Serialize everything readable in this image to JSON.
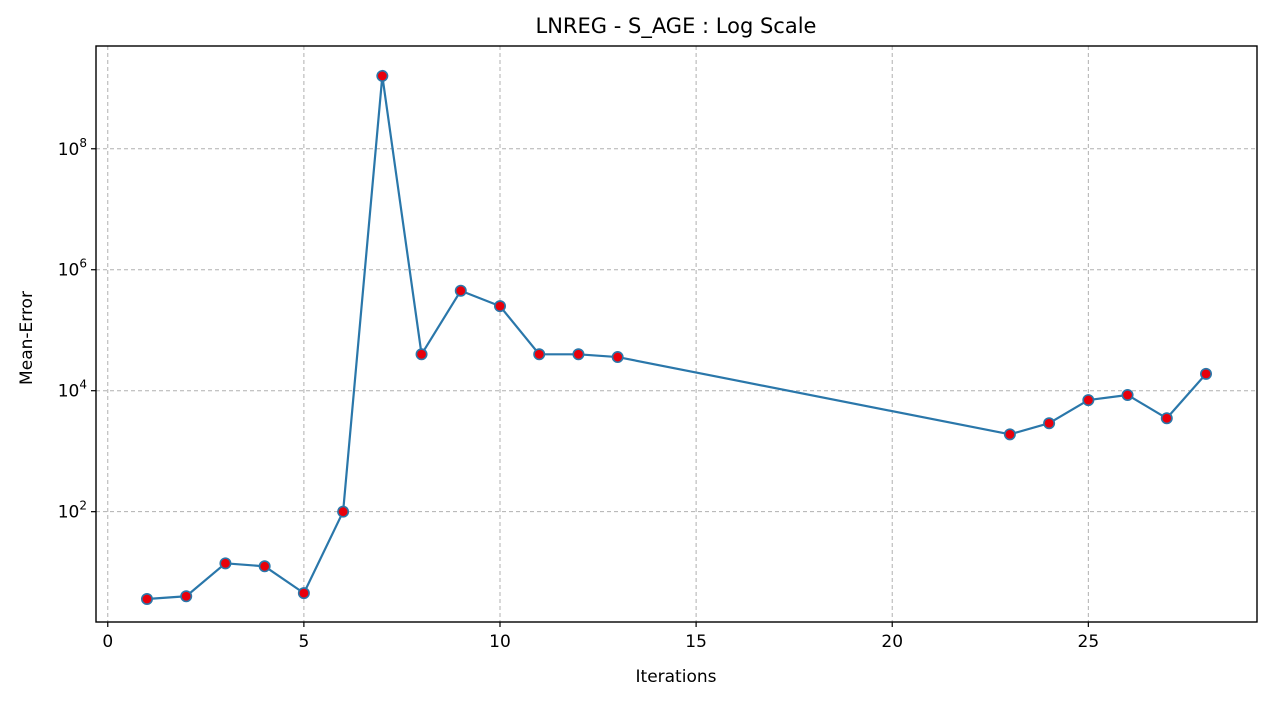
{
  "chart_data": {
    "type": "line",
    "title": "LNREG - S_AGE : Log Scale",
    "xlabel": "Iterations",
    "ylabel": "Mean-Error",
    "yscale": "log",
    "grid": true,
    "grid_style": "dashed",
    "xlim": [
      -0.3,
      29.3
    ],
    "ylim": [
      1.5,
      5000000000
    ],
    "x_ticks": [
      0,
      5,
      10,
      15,
      20,
      25
    ],
    "x_tick_labels": [
      "0",
      "5",
      "10",
      "15",
      "20",
      "25"
    ],
    "y_ticks": [
      100,
      10000,
      1000000,
      100000000
    ],
    "y_tick_labels": [
      {
        "base": "10",
        "exp": "2"
      },
      {
        "base": "10",
        "exp": "4"
      },
      {
        "base": "10",
        "exp": "6"
      },
      {
        "base": "10",
        "exp": "8"
      }
    ],
    "series": [
      {
        "line_color": "#2a77aa",
        "marker_color": "#e8000b",
        "marker_edge_color": "#2a77aa",
        "x": [
          1,
          2,
          3,
          4,
          5,
          6,
          7,
          8,
          9,
          10,
          11,
          12,
          13,
          23,
          24,
          25,
          26,
          27,
          28
        ],
        "y": [
          3.6,
          4.0,
          14.0,
          12.5,
          4.5,
          100,
          1600000000,
          40000,
          450000,
          250000,
          40000,
          40000,
          36000,
          1900,
          2900,
          7000,
          8500,
          3500,
          19000
        ]
      }
    ]
  }
}
